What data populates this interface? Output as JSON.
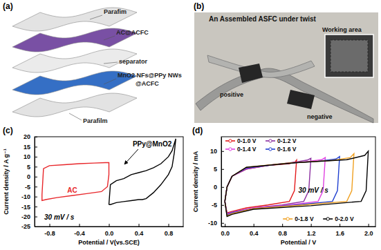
{
  "figure": {
    "panel_labels": [
      "(a)",
      "(b)",
      "(c)",
      "(d)"
    ]
  },
  "diagram": {
    "labels": [
      "Parafim",
      "AC@ACFC",
      "separator",
      "MnO2 NFs@PPy NWs",
      "@ACFC",
      "Parafilm"
    ]
  },
  "photo": {
    "title": "An Assembled ASFC under twist",
    "labels": [
      "Working area",
      "positive",
      "negative"
    ]
  },
  "chart_data": [
    {
      "type": "line",
      "x_label": "Potential / V(vs.SCE)",
      "y_label": "Current density / A g⁻¹",
      "xlim": [
        -1.0,
        1.0
      ],
      "ylim": [
        -25,
        20
      ],
      "xticks": [
        -0.8,
        -0.4,
        {
          "value": 0,
          "label": "0.0"
        },
        0.4,
        0.8
      ],
      "yticks": [
        -25,
        -20,
        -15,
        -10,
        -5,
        0,
        5,
        10,
        15,
        20
      ],
      "grid": false,
      "annotations": [
        "30 mV / s"
      ],
      "series": [
        {
          "name": "AC",
          "color": "#e8262a",
          "x": [
            -0.9,
            -0.88,
            -0.8,
            -0.6,
            -0.4,
            -0.2,
            -0.05,
            0,
            0,
            -0.02,
            -0.1,
            -0.3,
            -0.5,
            -0.7,
            -0.85,
            -0.9,
            -0.9
          ],
          "values": [
            -9,
            4,
            5.5,
            6,
            6.5,
            6.8,
            7,
            7,
            1,
            -5,
            -7.5,
            -8.5,
            -9.5,
            -10.5,
            -11.5,
            -12,
            -9
          ]
        },
        {
          "name": "PPy@MnO2",
          "color": "#000000",
          "x": [
            0,
            0.02,
            0.1,
            0.2,
            0.3,
            0.4,
            0.5,
            0.6,
            0.7,
            0.8,
            0.85,
            0.9,
            0.88,
            0.85,
            0.8,
            0.7,
            0.6,
            0.5,
            0.45,
            0.4,
            0.3,
            0.2,
            0.1,
            0.02,
            0
          ],
          "values": [
            -14,
            -4,
            -2,
            -1,
            1,
            2,
            3,
            4.5,
            6.5,
            10,
            13,
            19,
            12,
            5,
            1,
            -4,
            -8,
            -11,
            -11.5,
            -11.5,
            -12,
            -12.5,
            -13,
            -14,
            -14
          ]
        }
      ]
    },
    {
      "type": "line",
      "x_label": "Potential / V",
      "y_label": "Current density / mA",
      "xlim": [
        -0.05,
        2.1
      ],
      "ylim": [
        -11,
        14
      ],
      "xticks": [
        {
          "value": 0,
          "label": "0.0"
        },
        0.4,
        0.8,
        1.2,
        1.6,
        {
          "value": 2,
          "label": "2.0"
        }
      ],
      "yticks": [
        -10,
        -5,
        0,
        5,
        10
      ],
      "grid": false,
      "legend": "top-left",
      "annotations": [
        "30 mV / s"
      ],
      "series": [
        {
          "name": "0-1.0 V",
          "color": "#e41a1c",
          "x": [
            0,
            0.03,
            0.1,
            0.3,
            0.6,
            0.9,
            0.98,
            1.0,
            0.97,
            0.9,
            0.6,
            0.3,
            0.1,
            0.03,
            0
          ],
          "values": [
            -4,
            0,
            3,
            5,
            6,
            6.5,
            7,
            7.5,
            -1,
            -4,
            -5,
            -5.8,
            -6.8,
            -7.2,
            -4
          ]
        },
        {
          "name": "0-1.2 V",
          "color": "#8b2fa0",
          "x": [
            0,
            0.03,
            0.1,
            0.3,
            0.6,
            1.0,
            1.15,
            1.2,
            1.17,
            1.1,
            0.8,
            0.4,
            0.1,
            0.03,
            0
          ],
          "values": [
            -4,
            0,
            3,
            5,
            6,
            7,
            7.5,
            8,
            -1,
            -4,
            -5,
            -5.8,
            -7,
            -7.4,
            -4
          ]
        },
        {
          "name": "0-1.4 V",
          "color": "#e040e0",
          "x": [
            0,
            0.03,
            0.1,
            0.3,
            0.7,
            1.1,
            1.35,
            1.4,
            1.37,
            1.3,
            0.9,
            0.4,
            0.1,
            0.03,
            0
          ],
          "values": [
            -4,
            0,
            3,
            5.2,
            6.3,
            7,
            7.6,
            8.2,
            -1,
            -4,
            -5,
            -5.8,
            -7.1,
            -7.6,
            -4
          ]
        },
        {
          "name": "0-1.6 V",
          "color": "#1f3fd0",
          "x": [
            0,
            0.03,
            0.1,
            0.3,
            0.8,
            1.3,
            1.55,
            1.6,
            1.57,
            1.5,
            1.0,
            0.4,
            0.1,
            0.03,
            0
          ],
          "values": [
            -4,
            0,
            3,
            5.3,
            6.5,
            7.2,
            7.8,
            8.5,
            -1,
            -4,
            -5,
            -6,
            -7.2,
            -7.8,
            -4
          ]
        },
        {
          "name": "0-1.8 V",
          "color": "#f0a020",
          "x": [
            0,
            0.03,
            0.1,
            0.3,
            0.9,
            1.5,
            1.75,
            1.8,
            1.77,
            1.7,
            1.1,
            0.4,
            0.1,
            0.03,
            0
          ],
          "values": [
            -4,
            0,
            3,
            5.5,
            6.7,
            7.4,
            8.2,
            9.3,
            -1,
            -4,
            -5,
            -6,
            -7.4,
            -8,
            -4
          ]
        },
        {
          "name": "0-2.0 V",
          "color": "#000000",
          "x": [
            0,
            0.03,
            0.1,
            0.3,
            1.0,
            1.7,
            1.95,
            2.0,
            1.97,
            1.9,
            1.2,
            0.4,
            0.1,
            0.03,
            0
          ],
          "values": [
            -4,
            0,
            3,
            5.5,
            6.8,
            7.6,
            8.8,
            10,
            -1,
            -4,
            -5.2,
            -6.2,
            -7.6,
            -8.2,
            -4
          ]
        }
      ]
    }
  ]
}
